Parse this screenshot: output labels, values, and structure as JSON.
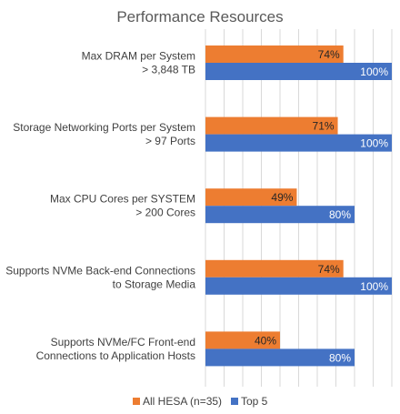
{
  "chart_data": {
    "type": "bar",
    "orientation": "horizontal",
    "title": "Performance Resources",
    "categories": [
      [
        "Max DRAM per System",
        "> 3,848 TB"
      ],
      [
        "Storage Networking Ports per System",
        "> 97 Ports"
      ],
      [
        "Max CPU Cores per SYSTEM",
        "> 200 Cores"
      ],
      [
        "Supports NVMe Back-end Connections",
        "to Storage Media"
      ],
      [
        "Supports NVMe/FC Front-end",
        "Connections to Application Hosts"
      ]
    ],
    "series": [
      {
        "name": "All HESA (n=35)",
        "color": "#ED7D31",
        "values": [
          74,
          71,
          49,
          74,
          40
        ]
      },
      {
        "name": "Top 5",
        "color": "#4472C4",
        "values": [
          100,
          100,
          80,
          100,
          80
        ]
      }
    ],
    "value_suffix": "%",
    "xlim": [
      0,
      100
    ],
    "grid": true,
    "legend_position": "bottom"
  }
}
